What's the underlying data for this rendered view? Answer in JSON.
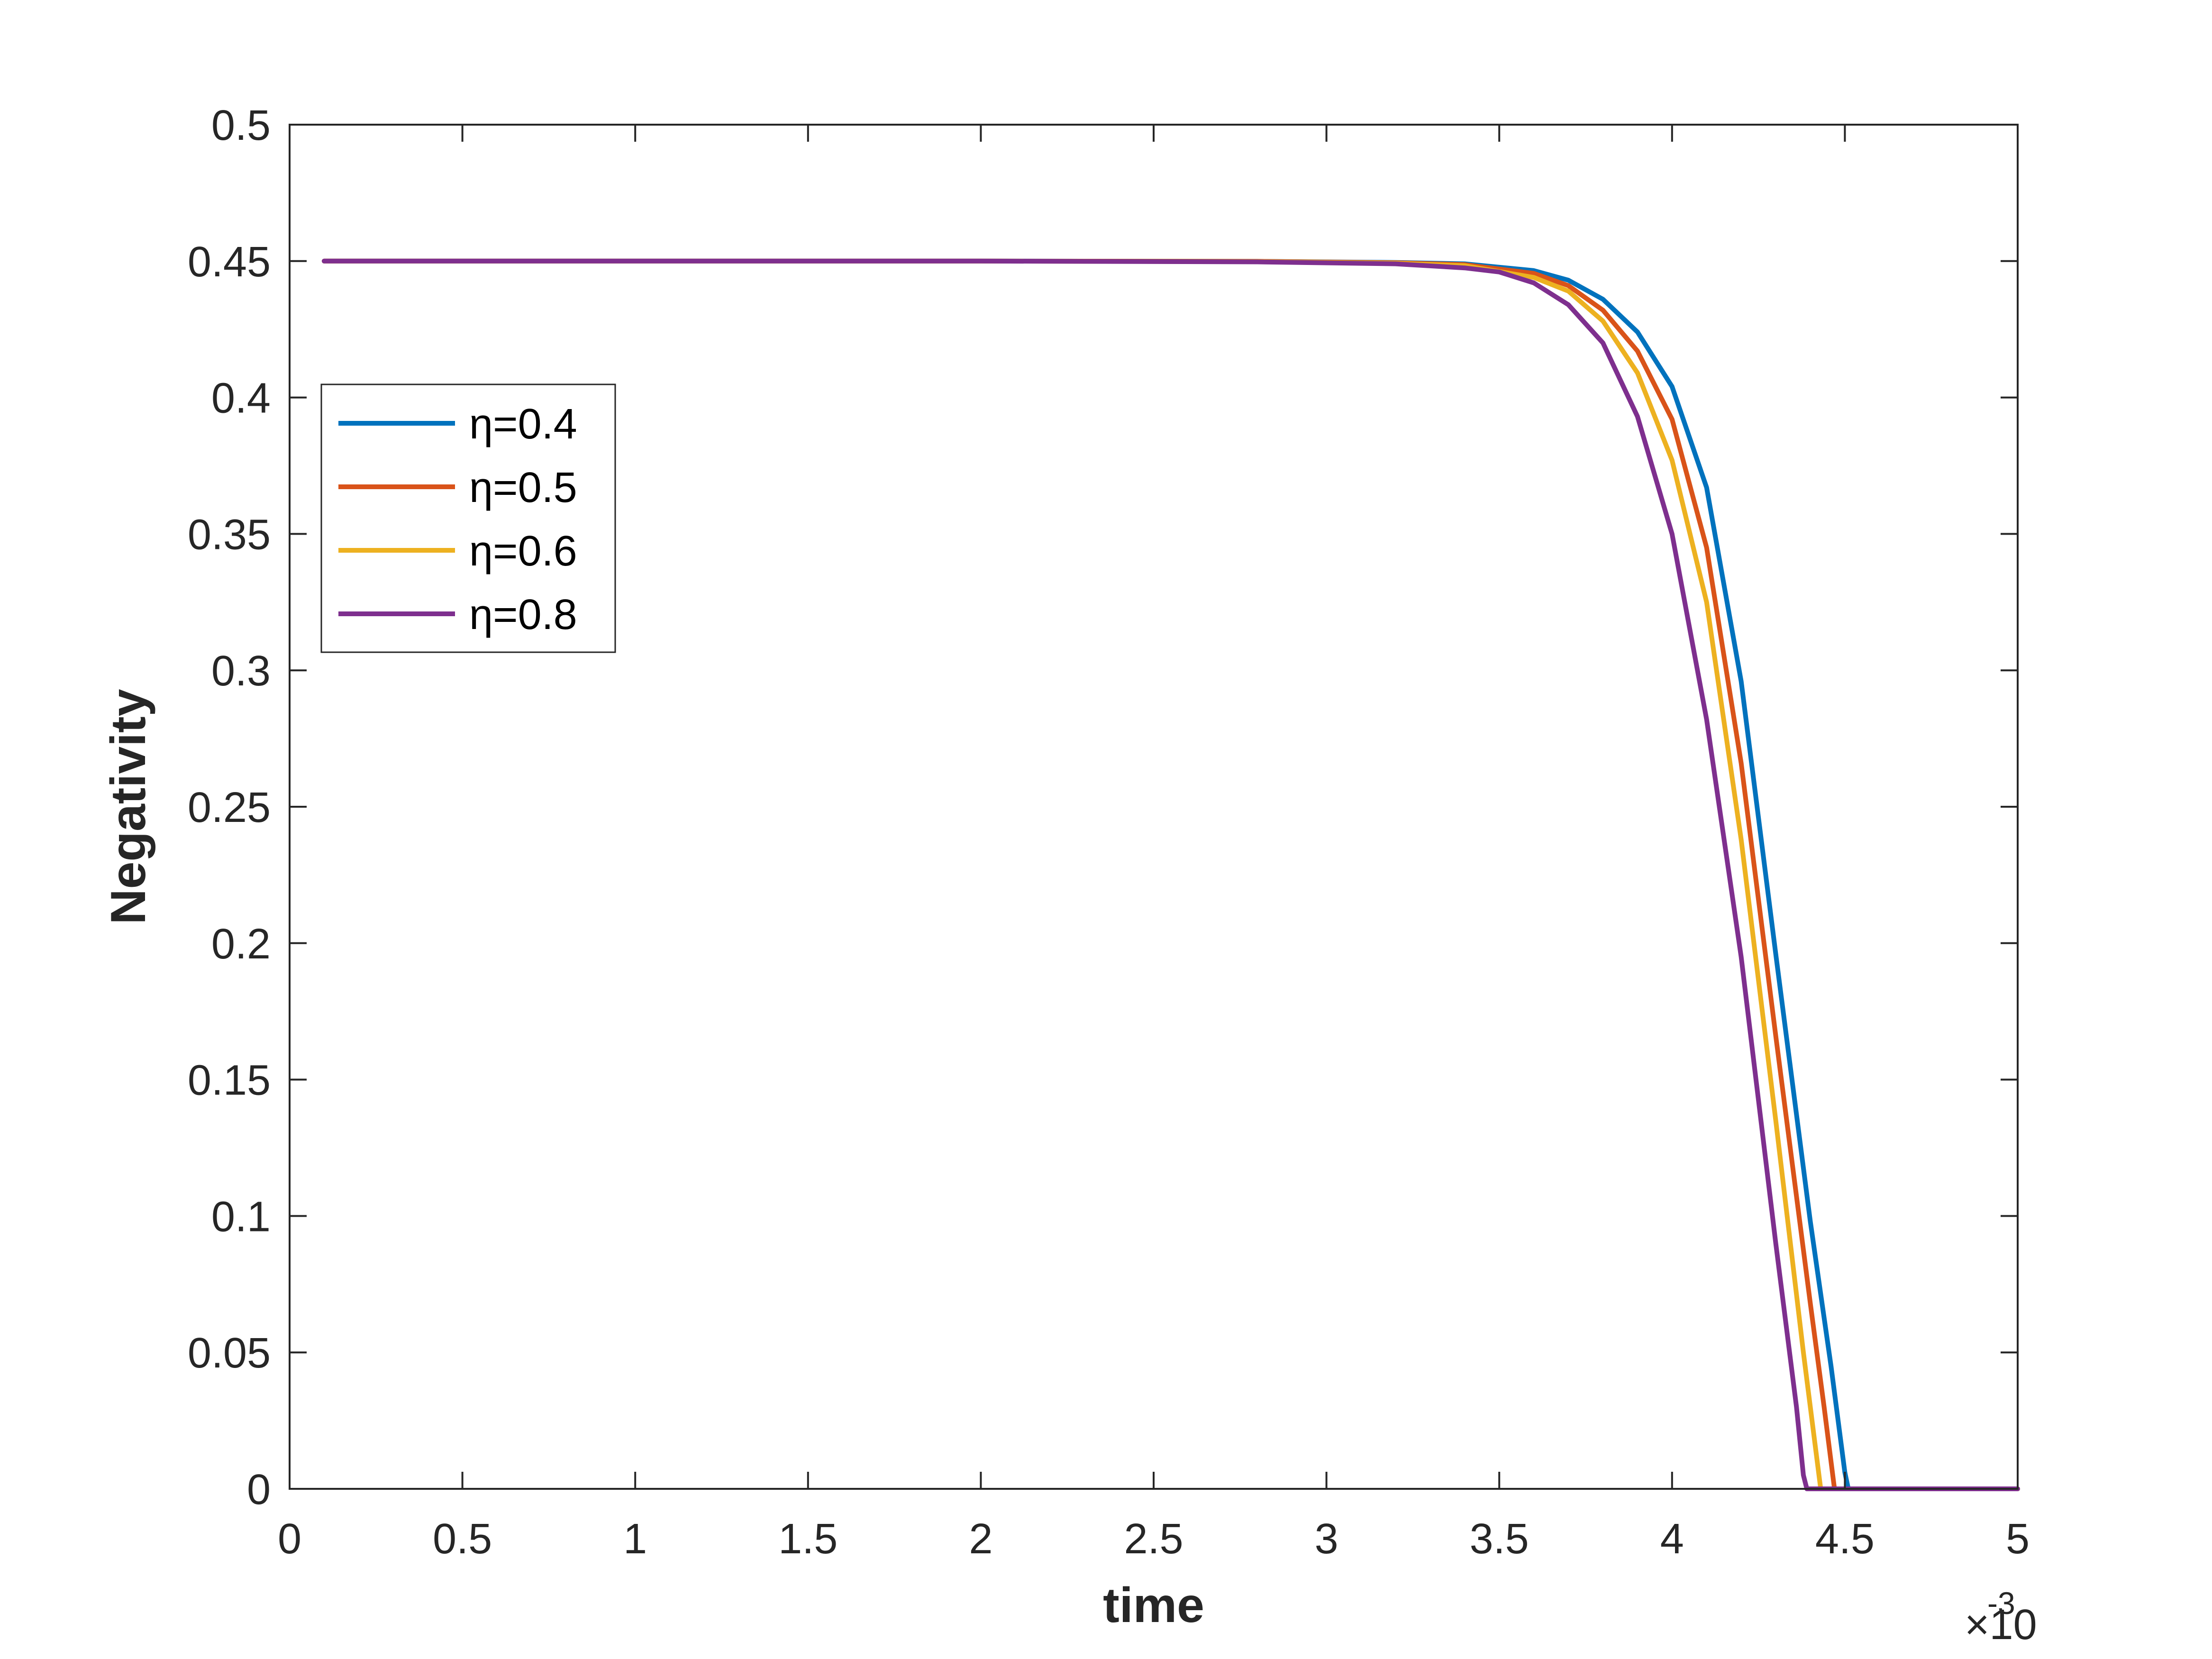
{
  "chart_data": {
    "type": "line",
    "title": "",
    "xlabel": "time",
    "ylabel": "Negativity",
    "x_multiplier": "×10",
    "x_multiplier_exponent": "-3",
    "xlim": [
      0,
      5
    ],
    "ylim": [
      0,
      0.5
    ],
    "xticks": [
      0,
      0.5,
      1,
      1.5,
      2,
      2.5,
      3,
      3.5,
      4,
      4.5,
      5
    ],
    "xtick_labels": [
      "0",
      "0.5",
      "1",
      "1.5",
      "2",
      "2.5",
      "3",
      "3.5",
      "4",
      "4.5",
      "5"
    ],
    "yticks": [
      0,
      0.05,
      0.1,
      0.15,
      0.2,
      0.25,
      0.3,
      0.35,
      0.4,
      0.45,
      0.5
    ],
    "ytick_labels": [
      "0",
      "0.05",
      "0.1",
      "0.15",
      "0.2",
      "0.25",
      "0.3",
      "0.35",
      "0.4",
      "0.45",
      "0.5"
    ],
    "grid": false,
    "legend_position": "left-upper",
    "series": [
      {
        "name": "η=0.4",
        "color": "#0072BD",
        "points": [
          [
            0.1,
            0.45
          ],
          [
            1.0,
            0.45
          ],
          [
            2.0,
            0.45
          ],
          [
            2.8,
            0.4499
          ],
          [
            3.2,
            0.4495
          ],
          [
            3.4,
            0.449
          ],
          [
            3.6,
            0.4465
          ],
          [
            3.7,
            0.443
          ],
          [
            3.8,
            0.436
          ],
          [
            3.9,
            0.424
          ],
          [
            4.0,
            0.404
          ],
          [
            4.1,
            0.367
          ],
          [
            4.2,
            0.296
          ],
          [
            4.3,
            0.196
          ],
          [
            4.4,
            0.098
          ],
          [
            4.46,
            0.045
          ],
          [
            4.5,
            0.006
          ],
          [
            4.51,
            0.0
          ],
          [
            5.0,
            0.0
          ]
        ]
      },
      {
        "name": "η=0.5",
        "color": "#D95319",
        "points": [
          [
            0.1,
            0.45
          ],
          [
            1.0,
            0.45
          ],
          [
            2.0,
            0.45
          ],
          [
            2.8,
            0.4499
          ],
          [
            3.2,
            0.4494
          ],
          [
            3.4,
            0.4487
          ],
          [
            3.6,
            0.4455
          ],
          [
            3.7,
            0.441
          ],
          [
            3.8,
            0.432
          ],
          [
            3.9,
            0.417
          ],
          [
            4.0,
            0.392
          ],
          [
            4.1,
            0.345
          ],
          [
            4.2,
            0.266
          ],
          [
            4.3,
            0.166
          ],
          [
            4.4,
            0.068
          ],
          [
            4.44,
            0.03
          ],
          [
            4.47,
            0.0
          ],
          [
            5.0,
            0.0
          ]
        ]
      },
      {
        "name": "η=0.6",
        "color": "#EDB120",
        "points": [
          [
            0.1,
            0.45
          ],
          [
            1.0,
            0.45
          ],
          [
            2.0,
            0.45
          ],
          [
            2.8,
            0.4498
          ],
          [
            3.2,
            0.4492
          ],
          [
            3.4,
            0.4483
          ],
          [
            3.6,
            0.444
          ],
          [
            3.7,
            0.439
          ],
          [
            3.8,
            0.428
          ],
          [
            3.9,
            0.409
          ],
          [
            4.0,
            0.377
          ],
          [
            4.1,
            0.325
          ],
          [
            4.2,
            0.238
          ],
          [
            4.3,
            0.135
          ],
          [
            4.38,
            0.05
          ],
          [
            4.43,
            0.0
          ],
          [
            5.0,
            0.0
          ]
        ]
      },
      {
        "name": "η=0.8",
        "color": "#7E2F8E",
        "points": [
          [
            0.1,
            0.45
          ],
          [
            1.0,
            0.45
          ],
          [
            2.0,
            0.45
          ],
          [
            2.8,
            0.4497
          ],
          [
            3.2,
            0.449
          ],
          [
            3.4,
            0.4475
          ],
          [
            3.5,
            0.446
          ],
          [
            3.6,
            0.442
          ],
          [
            3.7,
            0.434
          ],
          [
            3.8,
            0.42
          ],
          [
            3.9,
            0.393
          ],
          [
            4.0,
            0.35
          ],
          [
            4.1,
            0.282
          ],
          [
            4.2,
            0.195
          ],
          [
            4.3,
            0.09
          ],
          [
            4.36,
            0.03
          ],
          [
            4.38,
            0.005
          ],
          [
            4.39,
            0.0
          ],
          [
            5.0,
            0.0
          ]
        ]
      }
    ]
  }
}
